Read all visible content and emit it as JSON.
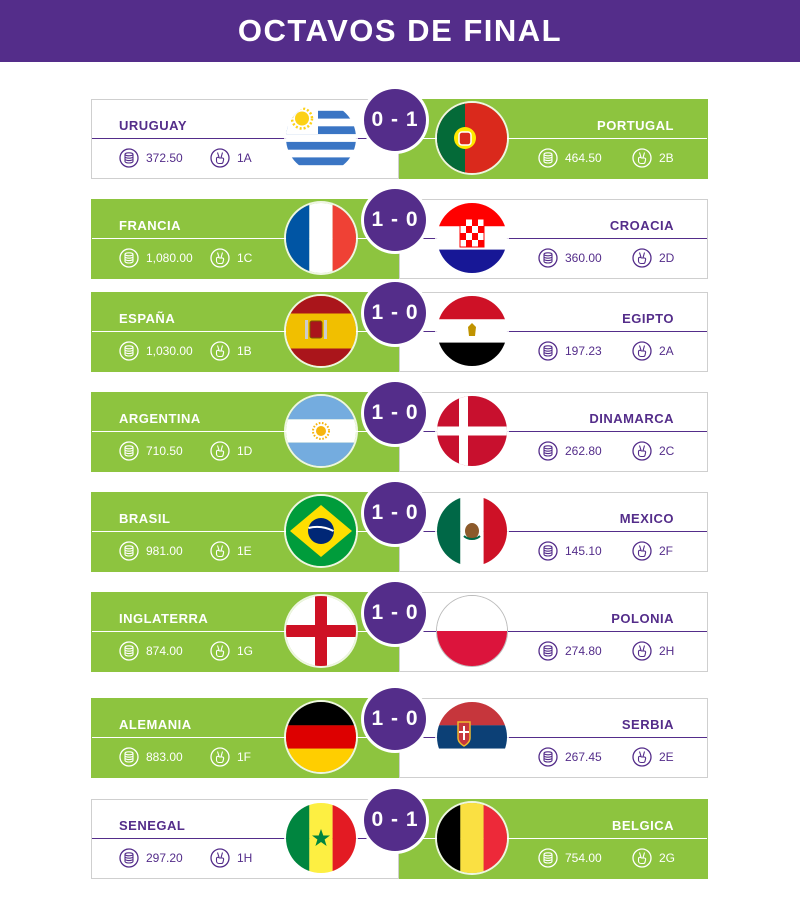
{
  "title": "OCTAVOS DE FINAL",
  "colors": {
    "purple": "#542d8a",
    "green": "#8dc43f"
  },
  "icons": {
    "points": "coin-stack-icon",
    "group": "victory-hand-icon"
  },
  "matches": [
    {
      "score": "0 - 1",
      "winner": "right",
      "left": {
        "team": "URUGUAY",
        "points": "372.50",
        "group": "1A",
        "flag": "uruguay-flag"
      },
      "right": {
        "team": "PORTUGAL",
        "points": "464.50",
        "group": "2B",
        "flag": "portugal-flag"
      }
    },
    {
      "score": "1 - 0",
      "winner": "left",
      "left": {
        "team": "FRANCIA",
        "points": "1,080.00",
        "group": "1C",
        "flag": "france-flag"
      },
      "right": {
        "team": "CROACIA",
        "points": "360.00",
        "group": "2D",
        "flag": "croatia-flag"
      }
    },
    {
      "score": "1 - 0",
      "winner": "left",
      "left": {
        "team": "ESPAÑA",
        "points": "1,030.00",
        "group": "1B",
        "flag": "spain-flag"
      },
      "right": {
        "team": "EGIPTO",
        "points": "197.23",
        "group": "2A",
        "flag": "egypt-flag"
      }
    },
    {
      "score": "1 - 0",
      "winner": "left",
      "left": {
        "team": "ARGENTINA",
        "points": "710.50",
        "group": "1D",
        "flag": "argentina-flag"
      },
      "right": {
        "team": "DINAMARCA",
        "points": "262.80",
        "group": "2C",
        "flag": "denmark-flag"
      }
    },
    {
      "score": "1 - 0",
      "winner": "left",
      "left": {
        "team": "BRASIL",
        "points": "981.00",
        "group": "1E",
        "flag": "brazil-flag"
      },
      "right": {
        "team": "MEXICO",
        "points": "145.10",
        "group": "2F",
        "flag": "mexico-flag"
      }
    },
    {
      "score": "1 - 0",
      "winner": "left",
      "left": {
        "team": "INGLATERRA",
        "points": "874.00",
        "group": "1G",
        "flag": "england-flag"
      },
      "right": {
        "team": "POLONIA",
        "points": "274.80",
        "group": "2H",
        "flag": "poland-flag"
      }
    },
    {
      "score": "1 - 0",
      "winner": "left",
      "left": {
        "team": "ALEMANIA",
        "points": "883.00",
        "group": "1F",
        "flag": "germany-flag"
      },
      "right": {
        "team": "SERBIA",
        "points": "267.45",
        "group": "2E",
        "flag": "serbia-flag"
      }
    },
    {
      "score": "0 - 1",
      "winner": "right",
      "left": {
        "team": "SENEGAL",
        "points": "297.20",
        "group": "1H",
        "flag": "senegal-flag"
      },
      "right": {
        "team": "BELGICA",
        "points": "754.00",
        "group": "2G",
        "flag": "belgium-flag"
      }
    }
  ]
}
